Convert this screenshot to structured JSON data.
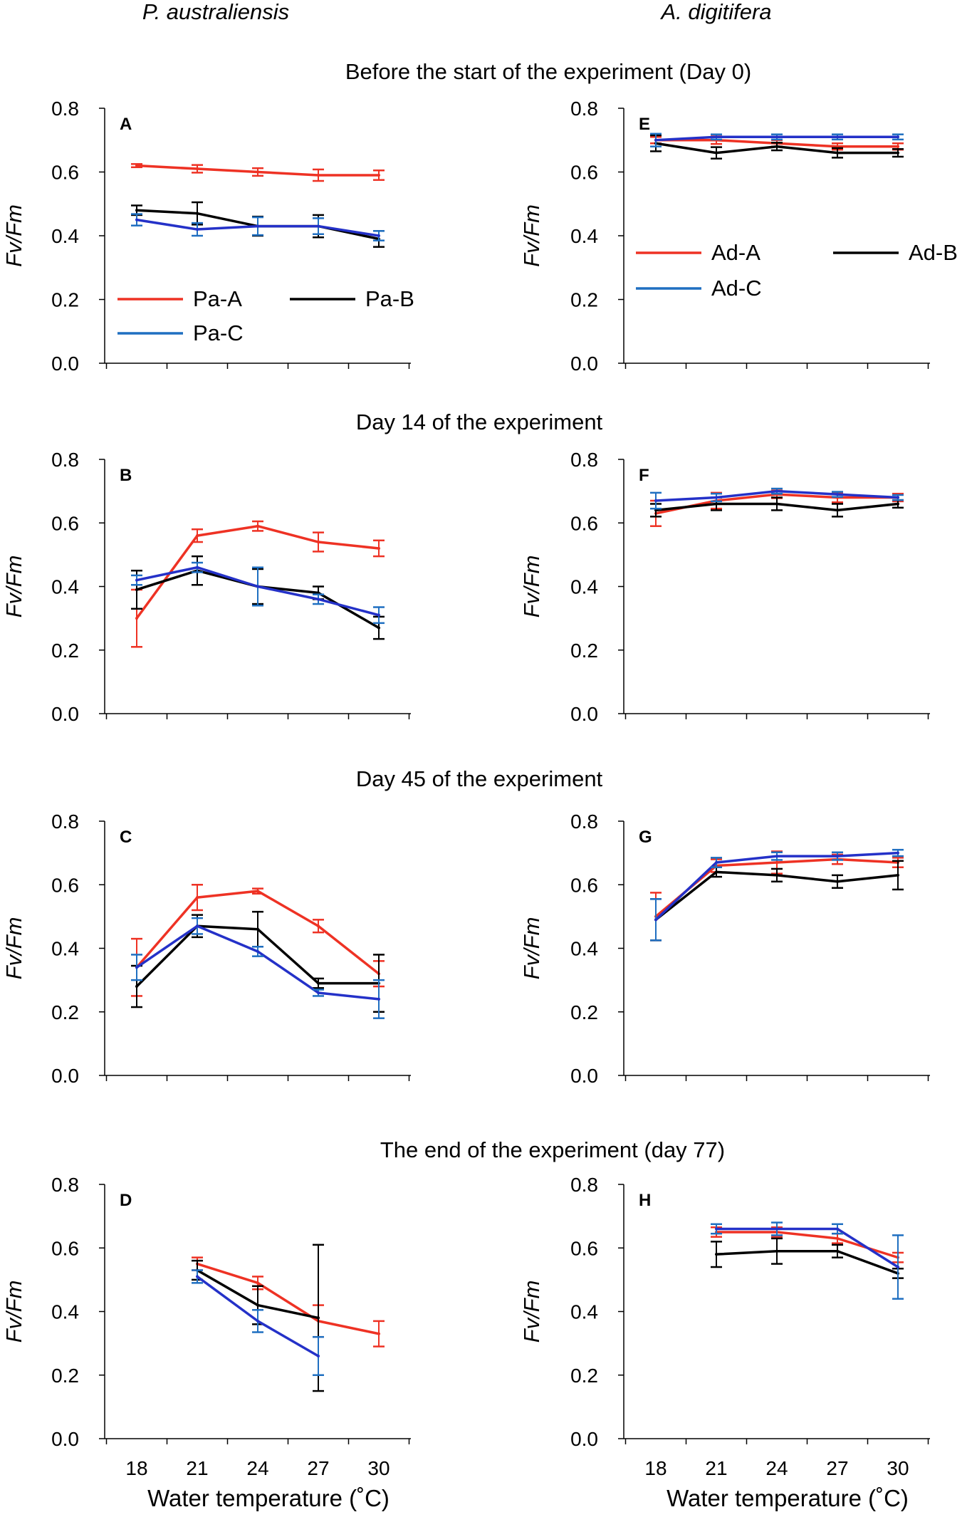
{
  "species": {
    "left": "P. australiensis",
    "right": "A. digitifera"
  },
  "sections": [
    "Before the start of the experiment (Day 0)",
    "Day 14 of the experiment",
    "Day 45 of the experiment",
    "The end of the experiment (day 77)"
  ],
  "colors": {
    "A": "#ee3224",
    "B": "#000000",
    "C": "#1f6fc1",
    "C_line": "#2431c8"
  },
  "chart_data": [
    {
      "panel": "A",
      "type": "line",
      "title": "",
      "ylabel": "Fv/Fm",
      "xlabel": "",
      "ylim": [
        0,
        0.8
      ],
      "yticks": [
        "0.0",
        "0.2",
        "0.4",
        "0.6",
        "0.8"
      ],
      "x": [
        18,
        21,
        24,
        27,
        30
      ],
      "xticks": [],
      "legend": [
        "Pa-A",
        "Pa-B",
        "Pa-C"
      ],
      "series": [
        {
          "name": "Pa-A",
          "key": "A",
          "values": [
            0.62,
            0.61,
            0.6,
            0.59,
            0.59
          ],
          "errors": [
            0.005,
            0.012,
            0.012,
            0.018,
            0.015
          ]
        },
        {
          "name": "Pa-B",
          "key": "B",
          "values": [
            0.48,
            0.47,
            0.43,
            0.43,
            0.39
          ],
          "errors": [
            0.015,
            0.035,
            0.03,
            0.035,
            0.025
          ]
        },
        {
          "name": "Pa-C",
          "key": "C",
          "values": [
            0.45,
            0.42,
            0.43,
            0.43,
            0.4
          ],
          "errors": [
            0.018,
            0.02,
            0.028,
            0.025,
            0.015
          ]
        }
      ]
    },
    {
      "panel": "E",
      "type": "line",
      "title": "",
      "ylabel": "Fv/Fm",
      "xlabel": "",
      "ylim": [
        0,
        0.8
      ],
      "yticks": [
        "0.0",
        "0.2",
        "0.4",
        "0.6",
        "0.8"
      ],
      "x": [
        18,
        21,
        24,
        27,
        30
      ],
      "xticks": [],
      "legend": [
        "Ad-A",
        "Ad-B",
        "Ad-C"
      ],
      "series": [
        {
          "name": "Ad-A",
          "key": "A",
          "values": [
            0.7,
            0.7,
            0.69,
            0.68,
            0.68
          ],
          "errors": [
            0.01,
            0.012,
            0.01,
            0.01,
            0.01
          ]
        },
        {
          "name": "Ad-B",
          "key": "B",
          "values": [
            0.69,
            0.66,
            0.68,
            0.66,
            0.66
          ],
          "errors": [
            0.025,
            0.018,
            0.012,
            0.015,
            0.012
          ]
        },
        {
          "name": "Ad-C",
          "key": "C",
          "values": [
            0.7,
            0.71,
            0.71,
            0.71,
            0.71
          ],
          "errors": [
            0.02,
            0.008,
            0.008,
            0.008,
            0.008
          ]
        }
      ]
    },
    {
      "panel": "B",
      "type": "line",
      "title": "",
      "ylabel": "Fv/Fm",
      "xlabel": "",
      "ylim": [
        0,
        0.8
      ],
      "yticks": [
        "0.0",
        "0.2",
        "0.4",
        "0.6",
        "0.8"
      ],
      "x": [
        18,
        21,
        24,
        27,
        30
      ],
      "xticks": [],
      "legend": [],
      "series": [
        {
          "name": "Pa-A",
          "key": "A",
          "values": [
            0.3,
            0.56,
            0.59,
            0.54,
            0.52
          ],
          "errors": [
            0.09,
            0.02,
            0.015,
            0.03,
            0.025
          ]
        },
        {
          "name": "Pa-B",
          "key": "B",
          "values": [
            0.39,
            0.45,
            0.4,
            0.38,
            0.27
          ],
          "errors": [
            0.06,
            0.045,
            0.055,
            0.02,
            0.035
          ]
        },
        {
          "name": "Pa-C",
          "key": "C",
          "values": [
            0.42,
            0.46,
            0.4,
            0.36,
            0.31
          ],
          "errors": [
            0.015,
            0.015,
            0.06,
            0.015,
            0.025
          ]
        }
      ]
    },
    {
      "panel": "F",
      "type": "line",
      "title": "",
      "ylabel": "Fv/Fm",
      "xlabel": "",
      "ylim": [
        0,
        0.8
      ],
      "yticks": [
        "0.0",
        "0.2",
        "0.4",
        "0.6",
        "0.8"
      ],
      "x": [
        18,
        21,
        24,
        27,
        30
      ],
      "xticks": [],
      "legend": [],
      "series": [
        {
          "name": "Ad-A",
          "key": "A",
          "values": [
            0.63,
            0.67,
            0.69,
            0.68,
            0.68
          ],
          "errors": [
            0.04,
            0.025,
            0.012,
            0.015,
            0.012
          ]
        },
        {
          "name": "Ad-B",
          "key": "B",
          "values": [
            0.64,
            0.66,
            0.66,
            0.64,
            0.66
          ],
          "errors": [
            0.02,
            0.02,
            0.02,
            0.02,
            0.012
          ]
        },
        {
          "name": "Ad-C",
          "key": "C",
          "values": [
            0.67,
            0.68,
            0.7,
            0.69,
            0.68
          ],
          "errors": [
            0.025,
            0.012,
            0.008,
            0.008,
            0.008
          ]
        }
      ]
    },
    {
      "panel": "C",
      "type": "line",
      "title": "",
      "ylabel": "Fv/Fm",
      "xlabel": "",
      "ylim": [
        0,
        0.8
      ],
      "yticks": [
        "0.0",
        "0.2",
        "0.4",
        "0.6",
        "0.8"
      ],
      "x": [
        18,
        21,
        24,
        27,
        30
      ],
      "xticks": [],
      "legend": [],
      "series": [
        {
          "name": "Pa-A",
          "key": "A",
          "values": [
            0.34,
            0.56,
            0.58,
            0.47,
            0.32
          ],
          "errors": [
            0.09,
            0.04,
            0.008,
            0.02,
            0.04
          ]
        },
        {
          "name": "Pa-B",
          "key": "B",
          "values": [
            0.28,
            0.47,
            0.46,
            0.29,
            0.29
          ],
          "errors": [
            0.065,
            0.035,
            0.055,
            0.015,
            0.09
          ]
        },
        {
          "name": "Pa-C",
          "key": "C",
          "values": [
            0.34,
            0.47,
            0.39,
            0.26,
            0.24
          ],
          "errors": [
            0.04,
            0.025,
            0.015,
            0.01,
            0.06
          ]
        }
      ]
    },
    {
      "panel": "G",
      "type": "line",
      "title": "",
      "ylabel": "Fv/Fm",
      "xlabel": "",
      "ylim": [
        0,
        0.8
      ],
      "yticks": [
        "0.0",
        "0.2",
        "0.4",
        "0.6",
        "0.8"
      ],
      "x": [
        18,
        21,
        24,
        27,
        30
      ],
      "xticks": [],
      "legend": [],
      "series": [
        {
          "name": "Ad-A",
          "key": "A",
          "values": [
            0.5,
            0.66,
            0.67,
            0.68,
            0.67
          ],
          "errors": [
            0.075,
            0.02,
            0.035,
            0.015,
            0.015
          ]
        },
        {
          "name": "Ad-B",
          "key": "B",
          "values": [
            0.49,
            0.64,
            0.63,
            0.61,
            0.63
          ],
          "errors": [
            0.065,
            0.015,
            0.02,
            0.02,
            0.045
          ]
        },
        {
          "name": "Ad-C",
          "key": "C",
          "values": [
            0.49,
            0.67,
            0.69,
            0.69,
            0.7
          ],
          "errors": [
            0.065,
            0.015,
            0.012,
            0.012,
            0.01
          ]
        }
      ]
    },
    {
      "panel": "D",
      "type": "line",
      "title": "",
      "ylabel": "Fv/Fm",
      "xlabel": "Water temperature (˚C)",
      "ylim": [
        0,
        0.8
      ],
      "yticks": [
        "0.0",
        "0.2",
        "0.4",
        "0.6",
        "0.8"
      ],
      "x": [
        18,
        21,
        24,
        27,
        30
      ],
      "xticks": [
        "18",
        "21",
        "24",
        "27",
        "30"
      ],
      "legend": [],
      "series": [
        {
          "name": "Pa-A",
          "key": "A",
          "values": [
            null,
            0.55,
            0.49,
            0.37,
            0.33
          ],
          "errors": [
            null,
            0.02,
            0.02,
            0.05,
            0.04
          ]
        },
        {
          "name": "Pa-B",
          "key": "B",
          "values": [
            null,
            0.53,
            0.42,
            0.38,
            null
          ],
          "errors": [
            null,
            0.03,
            0.06,
            0.23,
            null
          ]
        },
        {
          "name": "Pa-C",
          "key": "C",
          "values": [
            null,
            0.51,
            0.37,
            0.26,
            null
          ],
          "errors": [
            null,
            0.02,
            0.035,
            0.06,
            null
          ]
        }
      ]
    },
    {
      "panel": "H",
      "type": "line",
      "title": "",
      "ylabel": "Fv/Fm",
      "xlabel": "Water temperature (˚C)",
      "ylim": [
        0,
        0.8
      ],
      "yticks": [
        "0.0",
        "0.2",
        "0.4",
        "0.6",
        "0.8"
      ],
      "x": [
        18,
        21,
        24,
        27,
        30
      ],
      "xticks": [
        "18",
        "21",
        "24",
        "27",
        "30"
      ],
      "legend": [],
      "series": [
        {
          "name": "Ad-A",
          "key": "A",
          "values": [
            null,
            0.65,
            0.65,
            0.63,
            0.57
          ],
          "errors": [
            null,
            0.015,
            0.015,
            0.015,
            0.015
          ]
        },
        {
          "name": "Ad-B",
          "key": "B",
          "values": [
            null,
            0.58,
            0.59,
            0.59,
            0.52
          ],
          "errors": [
            null,
            0.04,
            0.04,
            0.02,
            0.015
          ]
        },
        {
          "name": "Ad-C",
          "key": "C",
          "values": [
            null,
            0.66,
            0.66,
            0.66,
            0.54
          ],
          "errors": [
            null,
            0.015,
            0.02,
            0.015,
            0.1
          ]
        }
      ]
    }
  ]
}
